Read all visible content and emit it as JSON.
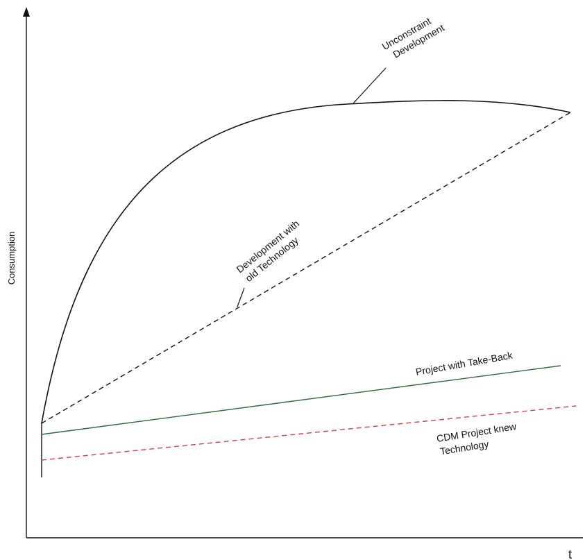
{
  "chart_data": {
    "type": "line",
    "ylabel": "Consumption",
    "xlabel": "t",
    "series": [
      {
        "name": "Unconstraint Development",
        "style": "solid",
        "color": "#111111"
      },
      {
        "name": "Development with old Technology",
        "style": "dashed",
        "color": "#111111"
      },
      {
        "name": "Project with Take-Back",
        "style": "solid",
        "color": "#2e6b34"
      },
      {
        "name": "CDM Project knew Technology",
        "style": "dashed",
        "color": "#d04040"
      }
    ]
  },
  "labels": {
    "unconstraint_line1": "Unconstraint",
    "unconstraint_line2": "Development",
    "old_tech_line1": "Development with",
    "old_tech_line2": "old Technology",
    "takeback": "Project with Take-Back",
    "cdm_line1": "CDM Project knew",
    "cdm_line2": "Technology"
  },
  "colors": {
    "axis": "#111111",
    "takeback": "#2e6b34",
    "cdm": "#d04040"
  }
}
